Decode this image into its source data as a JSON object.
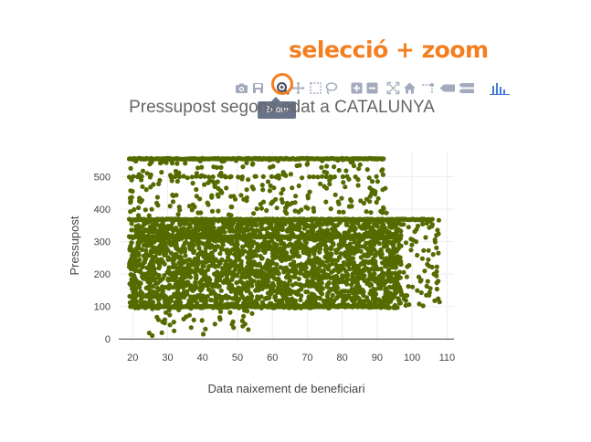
{
  "annotation": {
    "text": "selecció + zoom",
    "color": "#f47f20"
  },
  "modebar": {
    "buttons": [
      {
        "name": "camera-icon"
      },
      {
        "name": "save-icon"
      },
      {
        "name": "zoom-icon"
      },
      {
        "name": "pan-icon"
      },
      {
        "name": "box-select-icon"
      },
      {
        "name": "lasso-select-icon"
      },
      {
        "name": "zoom-in-icon"
      },
      {
        "name": "zoom-out-icon"
      },
      {
        "name": "autoscale-icon"
      },
      {
        "name": "home-icon"
      },
      {
        "name": "spike-lines-icon"
      },
      {
        "name": "hover-closest-icon"
      },
      {
        "name": "hover-compare-icon"
      },
      {
        "name": "plotly-logo-icon"
      }
    ],
    "tooltip": "Zoom",
    "tooltip_color": "#69738a"
  },
  "chart_data": {
    "type": "scatter",
    "title": "Pressupost segons edat a CATALUNYA",
    "xlabel": "Data naixement de beneficiari",
    "ylabel": "Pressupost",
    "xlim": [
      16,
      112
    ],
    "ylim": [
      -5,
      580
    ],
    "xticks": [
      20,
      30,
      40,
      50,
      60,
      70,
      80,
      90,
      100,
      110
    ],
    "yticks": [
      0,
      100,
      200,
      300,
      400,
      500
    ],
    "grid": true,
    "marker_color": "#556b00",
    "series": [
      {
        "bands": [
          {
            "x": [
              19,
              106
            ],
            "y": 368,
            "dense": true
          },
          {
            "x": [
              19,
              92
            ],
            "y": 555,
            "dense": true
          },
          {
            "x": [
              19,
              90
            ],
            "y": 500,
            "dense": false
          },
          {
            "x": [
              19,
              95
            ],
            "y": 315,
            "dense": true
          },
          {
            "x": [
              20,
              93
            ],
            "y": 100,
            "dense": true
          }
        ],
        "blocks": [
          {
            "x": [
              19,
              97
            ],
            "y": [
              95,
              370
            ],
            "count": 2600
          },
          {
            "x": [
              19,
              93
            ],
            "y": [
              380,
              555
            ],
            "count": 260
          },
          {
            "x": [
              22,
              55
            ],
            "y": [
              10,
              100
            ],
            "count": 45
          },
          {
            "x": [
              95,
              108
            ],
            "y": [
              100,
              370
            ],
            "count": 90
          }
        ]
      }
    ]
  }
}
